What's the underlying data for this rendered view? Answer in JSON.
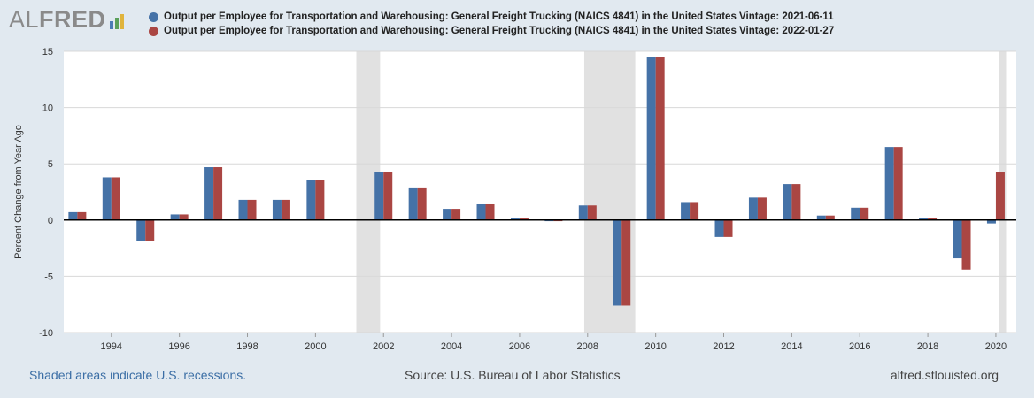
{
  "logo": {
    "text_al": "AL",
    "text_fred": "FRED",
    "bar_colors": [
      "#4b7bb5",
      "#5aa05a",
      "#e0b43c"
    ]
  },
  "legend": [
    {
      "label": "Output per Employee for Transportation and Warehousing: General Freight Trucking (NAICS 4841) in the United States Vintage: 2021-06-11",
      "color": "#4572a7"
    },
    {
      "label": "Output per Employee for Transportation and Warehousing: General Freight Trucking (NAICS 4841) in the United States Vintage: 2022-01-27",
      "color": "#aa4643"
    }
  ],
  "footer": {
    "recession_note": "Shaded areas indicate U.S. recessions.",
    "source": "Source: U.S. Bureau of Labor Statistics",
    "site": "alfred.stlouisfed.org"
  },
  "chart_data": {
    "type": "bar",
    "ylabel": "Percent Change from Year Ago",
    "ylim": [
      -10,
      15
    ],
    "yticks": [
      -10,
      -5,
      0,
      5,
      10,
      15
    ],
    "xlim": [
      1992.6,
      2020.6
    ],
    "xticks": [
      1994,
      1996,
      1998,
      2000,
      2002,
      2004,
      2006,
      2008,
      2010,
      2012,
      2014,
      2016,
      2018,
      2020
    ],
    "x": [
      1993,
      1994,
      1995,
      1996,
      1997,
      1998,
      1999,
      2000,
      2002,
      2003,
      2004,
      2005,
      2006,
      2007,
      2008,
      2009,
      2010,
      2011,
      2012,
      2013,
      2014,
      2015,
      2016,
      2017,
      2018,
      2019,
      2020
    ],
    "grid": "horizontal",
    "recessions": [
      [
        2001.2,
        2001.9
      ],
      [
        2007.9,
        2009.4
      ],
      [
        2020.1,
        2020.3
      ]
    ],
    "series": [
      {
        "name": "Vintage: 2021-06-11",
        "color": "#4572a7",
        "values": [
          0.7,
          3.8,
          -1.9,
          0.5,
          4.7,
          1.8,
          1.8,
          3.6,
          4.3,
          2.9,
          1.0,
          1.4,
          0.2,
          -0.1,
          1.3,
          -7.6,
          14.5,
          1.6,
          -1.5,
          2.0,
          3.2,
          0.4,
          1.1,
          6.5,
          0.2,
          -3.4,
          -0.3
        ]
      },
      {
        "name": "Vintage: 2022-01-27",
        "color": "#aa4643",
        "values": [
          0.7,
          3.8,
          -1.9,
          0.5,
          4.7,
          1.8,
          1.8,
          3.6,
          4.3,
          2.9,
          1.0,
          1.4,
          0.2,
          -0.1,
          1.3,
          -7.6,
          14.5,
          1.6,
          -1.5,
          2.0,
          3.2,
          0.4,
          1.1,
          6.5,
          0.2,
          -4.4,
          4.3
        ]
      }
    ]
  }
}
